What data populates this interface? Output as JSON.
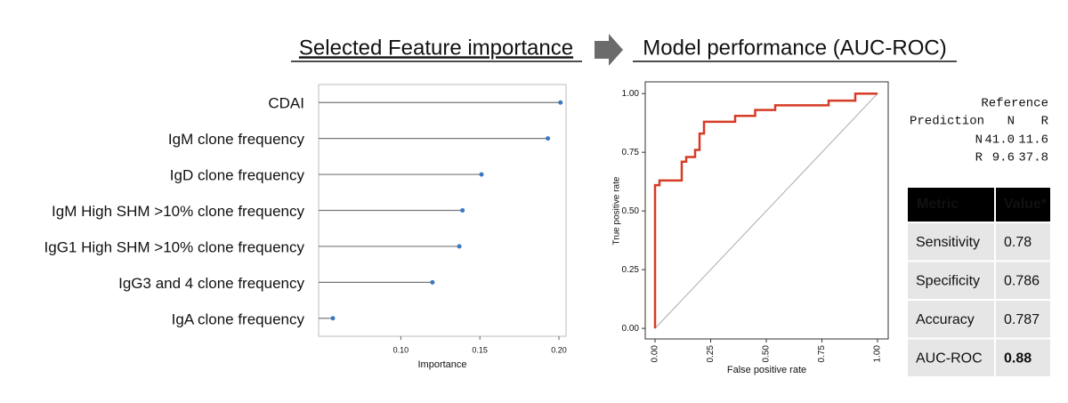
{
  "headings": {
    "left": "Selected Feature importance",
    "right": "Model performance (AUC-ROC)"
  },
  "chart_data": [
    {
      "type": "lollipop",
      "categories": [
        "CDAI",
        "IgM clone frequency",
        "IgD clone frequency",
        "IgM High SHM >10% clone frequency",
        "IgG1 High SHM >10% clone frequency",
        "IgG3 and 4 clone frequency",
        "IgA clone frequency"
      ],
      "values": [
        0.201,
        0.193,
        0.151,
        0.139,
        0.137,
        0.12,
        0.057
      ],
      "color": "#3b78c0",
      "stem_color": "#777777",
      "xlabel": "Importance",
      "xlim": [
        0.048,
        0.2045
      ],
      "xticks": [
        {
          "value": 0.1,
          "label": "0.10"
        },
        {
          "value": 0.15,
          "label": "0.15"
        },
        {
          "value": 0.2,
          "label": "0.20"
        }
      ]
    },
    {
      "type": "line",
      "x": [
        0,
        0,
        0.02,
        0.02,
        0.12,
        0.12,
        0.14,
        0.14,
        0.18,
        0.18,
        0.2,
        0.2,
        0.22,
        0.22,
        0.36,
        0.36,
        0.45,
        0.45,
        0.54,
        0.54,
        0.78,
        0.78,
        0.9,
        0.9,
        1.0
      ],
      "values": [
        0,
        0.61,
        0.61,
        0.63,
        0.63,
        0.71,
        0.71,
        0.73,
        0.73,
        0.76,
        0.76,
        0.83,
        0.83,
        0.88,
        0.88,
        0.905,
        0.905,
        0.93,
        0.93,
        0.95,
        0.95,
        0.97,
        0.97,
        1.0,
        1.0
      ],
      "color": "#d63b25",
      "xlabel": "False positive rate",
      "ylabel": "True positive rate",
      "xlim": [
        -0.044,
        1.048
      ],
      "ylim": [
        -0.045,
        1.05
      ],
      "xticks": [
        {
          "value": 0,
          "label": "0.00"
        },
        {
          "value": 0.25,
          "label": "0.25"
        },
        {
          "value": 0.5,
          "label": "0.50"
        },
        {
          "value": 0.75,
          "label": "0.75"
        },
        {
          "value": 1,
          "label": "1.00"
        }
      ],
      "yticks": [
        {
          "value": 0,
          "label": "0.00"
        },
        {
          "value": 0.25,
          "label": "0.25"
        },
        {
          "value": 0.5,
          "label": "0.50"
        },
        {
          "value": 0.75,
          "label": "0.75"
        },
        {
          "value": 1,
          "label": "1.00"
        }
      ]
    }
  ],
  "confusion_matrix": {
    "column_title": "Reference",
    "row_title": "Prediction",
    "columns": [
      "N",
      "R"
    ],
    "rows": [
      [
        "N",
        "41.0",
        "11.6"
      ],
      [
        "R",
        "9.6",
        "37.8"
      ]
    ]
  },
  "metrics_table": {
    "header": [
      "Metric",
      "Value*"
    ],
    "rows": [
      [
        "Sensitivity",
        "0.78"
      ],
      [
        "Specificity",
        "0.786"
      ],
      [
        "Accuracy",
        "0.787"
      ],
      [
        "AUC-ROC",
        "0.88"
      ]
    ]
  }
}
